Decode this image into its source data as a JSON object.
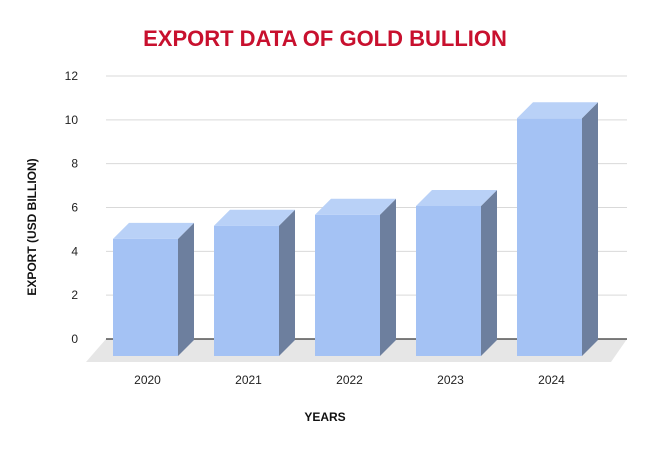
{
  "chart_data": {
    "type": "bar",
    "title": "EXPORT DATA OF GOLD BULLION",
    "xlabel": "YEARS",
    "ylabel": "EXPORT (USD BILLION)",
    "categories": [
      "2020",
      "2021",
      "2022",
      "2023",
      "2024"
    ],
    "values": [
      5.3,
      5.9,
      6.4,
      6.8,
      10.8
    ],
    "ylim": [
      0,
      12
    ],
    "yticks": [
      0,
      2,
      4,
      6,
      8,
      10,
      12
    ],
    "grid": true,
    "style": "3d",
    "colors": {
      "bar_front": "#a4c2f4",
      "bar_top": "#b9d1f7",
      "bar_side": "#6d7f9e",
      "floor": "#e6e6e6",
      "grid": "#d9d9d9",
      "title": "#c8102e"
    }
  }
}
